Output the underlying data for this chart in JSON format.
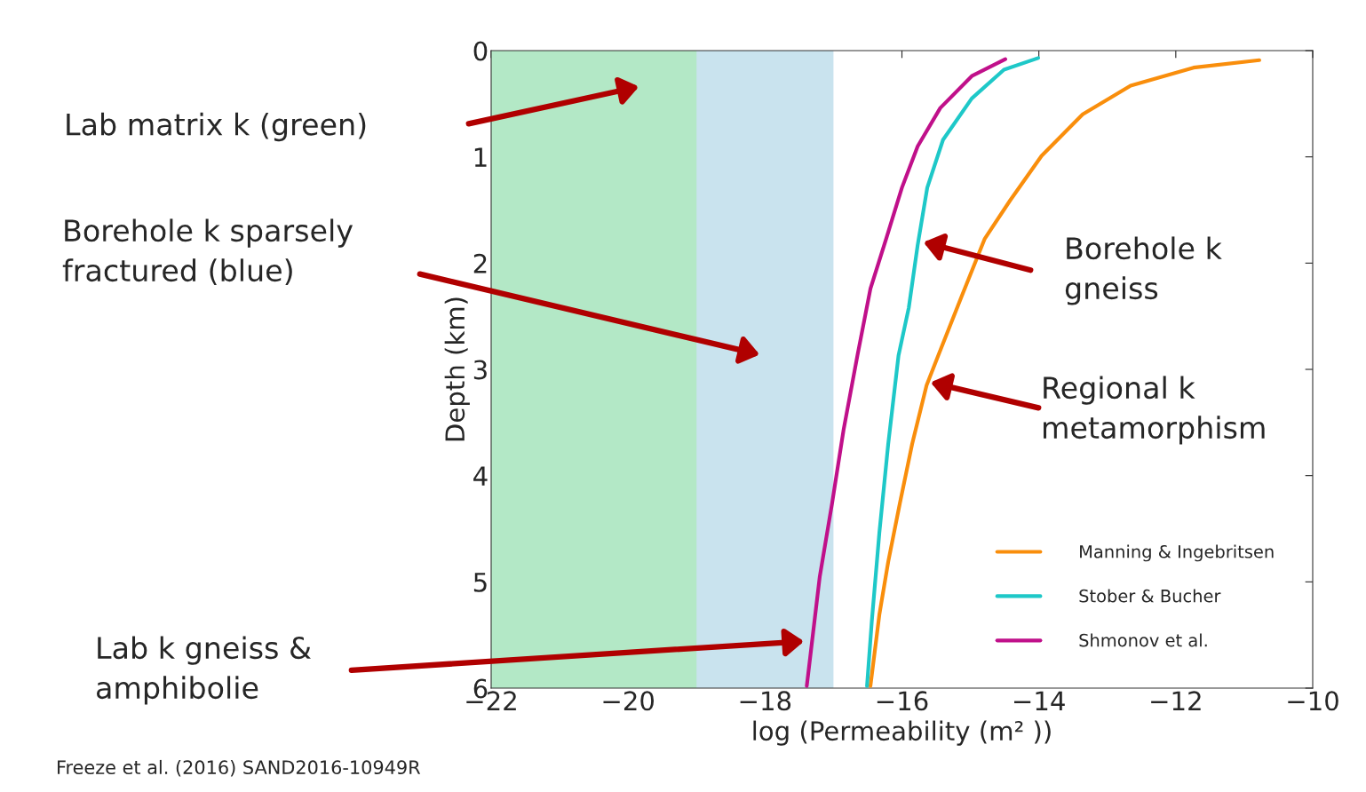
{
  "chart_data": {
    "type": "line",
    "xlabel": "log (Permeability (m² ))",
    "ylabel": "Depth (km)",
    "xlim": [
      -22,
      -10
    ],
    "xticks": [
      -22,
      -20,
      -18,
      -16,
      -14,
      -12,
      -10
    ],
    "ylim": [
      6,
      0
    ],
    "yticks": [
      0,
      1,
      2,
      3,
      4,
      5,
      6
    ],
    "grid": false,
    "legend": "bottom right",
    "marker": "none",
    "line_style": "solid",
    "bands": [
      {
        "axis": "x",
        "from": -22,
        "to": -17,
        "color": "#c9e3ee"
      },
      {
        "axis": "x",
        "from": -22,
        "to": -19,
        "color": "#b3e8c6"
      }
    ],
    "series": [
      {
        "name": "Manning & Ingebritsen",
        "color": "#f98e0c",
        "x": [
          -10.78,
          -11.74,
          -12.66,
          -13.36,
          -13.96,
          -14.42,
          -14.79,
          -15.12,
          -15.47,
          -15.64,
          -15.85,
          -16.03,
          -16.2,
          -16.33,
          -16.46
        ],
        "values": [
          0.09,
          0.16,
          0.33,
          0.6,
          0.99,
          1.41,
          1.77,
          2.3,
          2.87,
          3.15,
          3.7,
          4.26,
          4.81,
          5.31,
          5.98
        ]
      },
      {
        "name": "Stober & Bucher",
        "color": "#1ec8c8",
        "x": [
          -14.01,
          -14.51,
          -14.98,
          -15.4,
          -15.63,
          -15.77,
          -15.9,
          -16.05,
          -16.2,
          -16.33,
          -16.44,
          -16.51
        ],
        "values": [
          0.07,
          0.18,
          0.45,
          0.84,
          1.29,
          1.83,
          2.42,
          2.87,
          3.7,
          4.54,
          5.37,
          5.98
        ]
      },
      {
        "name": "Shmonov et al.",
        "color": "#c0108a",
        "x": [
          -14.49,
          -14.98,
          -15.44,
          -15.77,
          -16.0,
          -16.23,
          -16.46,
          -16.65,
          -16.85,
          -17.02,
          -17.2,
          -17.39
        ],
        "values": [
          0.08,
          0.24,
          0.54,
          0.9,
          1.29,
          1.77,
          2.24,
          2.87,
          3.56,
          4.26,
          4.95,
          5.98
        ]
      }
    ],
    "annotations": [
      "Lab matrix k (green)",
      "Borehole k sparsely\nfractured (blue)",
      "Lab k gneiss &\namphibolie",
      "Borehole k\ngneiss",
      "Regional k\nmetamorphism",
      "Freeze et al. (2016) SAND2016-10949R"
    ]
  }
}
